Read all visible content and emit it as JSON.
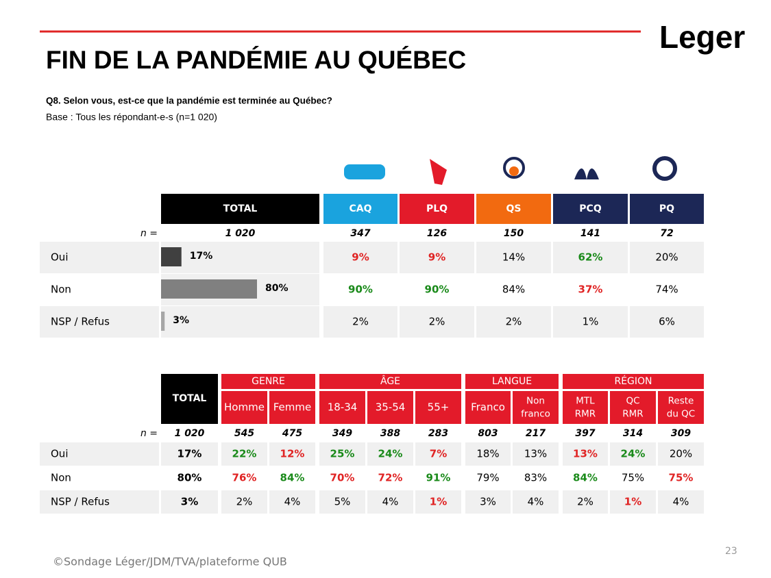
{
  "logo": "Leger",
  "title": "FIN DE LA PANDÉMIE AU QUÉBEC",
  "question": "Q8. Selon vous, est-ce que la pandémie est terminée au Québec?",
  "base": "Base : Tous les répondant-e-s (n=1 020)",
  "table1": {
    "n_label": "n =",
    "header": [
      "TOTAL",
      "CAQ",
      "PLQ",
      "QS",
      "PCQ",
      "PQ"
    ],
    "header_colors": [
      "#000000",
      "#1aa3de",
      "#e31b2a",
      "#f26a10",
      "#1c2756",
      "#1c2756"
    ],
    "n": [
      "1 020",
      "347",
      "126",
      "150",
      "141",
      "72"
    ],
    "rows": [
      {
        "label": "Oui",
        "total": 17,
        "total_label": "17%",
        "bar_color": "#404040",
        "cells": [
          {
            "text": "9%",
            "color": "#e02424"
          },
          {
            "text": "9%",
            "color": "#e02424"
          },
          "14%",
          {
            "text": "62%",
            "color": "#1a8a1a"
          },
          "20%"
        ]
      },
      {
        "label": "Non",
        "total": 80,
        "total_label": "80%",
        "bar_color": "#808080",
        "cells": [
          {
            "text": "90%",
            "color": "#1a8a1a"
          },
          {
            "text": "90%",
            "color": "#1a8a1a"
          },
          "84%",
          {
            "text": "37%",
            "color": "#e02424"
          },
          "74%"
        ]
      },
      {
        "label": "NSP / Refus",
        "total": 3,
        "total_label": "3%",
        "bar_color": "#a6a6a6",
        "cells": [
          "2%",
          "2%",
          "2%",
          "1%",
          "6%"
        ]
      }
    ]
  },
  "table2": {
    "n_label": "n =",
    "total_header": "TOTAL",
    "groups": [
      {
        "name": "GENRE",
        "columns": [
          [
            "Homme"
          ],
          [
            "Femme"
          ]
        ]
      },
      {
        "name": "ÂGE",
        "columns": [
          [
            "18-34"
          ],
          [
            "35-54"
          ],
          [
            "55+"
          ]
        ]
      },
      {
        "name": "LANGUE",
        "columns": [
          [
            "Franco"
          ],
          [
            "Non",
            "franco"
          ]
        ]
      },
      {
        "name": "RÉGION",
        "columns": [
          [
            "MTL",
            "RMR"
          ],
          [
            "QC",
            "RMR"
          ],
          [
            "Reste",
            "du QC"
          ]
        ]
      }
    ],
    "n": [
      "1 020",
      "545",
      "475",
      "349",
      "388",
      "283",
      "803",
      "217",
      "397",
      "314",
      "309"
    ],
    "rows": [
      {
        "label": "Oui",
        "cells": [
          "17%",
          {
            "text": "22%",
            "color": "#1a8a1a"
          },
          {
            "text": "12%",
            "color": "#e02424"
          },
          {
            "text": "25%",
            "color": "#1a8a1a"
          },
          {
            "text": "24%",
            "color": "#1a8a1a"
          },
          {
            "text": "7%",
            "color": "#e02424"
          },
          "18%",
          "13%",
          {
            "text": "13%",
            "color": "#e02424"
          },
          {
            "text": "24%",
            "color": "#1a8a1a"
          },
          "20%"
        ]
      },
      {
        "label": "Non",
        "cells": [
          "80%",
          {
            "text": "76%",
            "color": "#e02424"
          },
          {
            "text": "84%",
            "color": "#1a8a1a"
          },
          {
            "text": "70%",
            "color": "#e02424"
          },
          {
            "text": "72%",
            "color": "#e02424"
          },
          {
            "text": "91%",
            "color": "#1a8a1a"
          },
          "79%",
          "83%",
          {
            "text": "84%",
            "color": "#1a8a1a"
          },
          "75%",
          {
            "text": "75%",
            "color": "#e02424"
          }
        ]
      },
      {
        "label": "NSP / Refus",
        "cells": [
          "3%",
          "2%",
          "4%",
          "5%",
          "4%",
          {
            "text": "1%",
            "color": "#e02424"
          },
          "3%",
          "4%",
          "2%",
          {
            "text": "1%",
            "color": "#e02424"
          },
          "4%"
        ]
      }
    ]
  },
  "footer": "©Sondage Léger/JDM/TVA/plateforme QUB",
  "page": "23"
}
